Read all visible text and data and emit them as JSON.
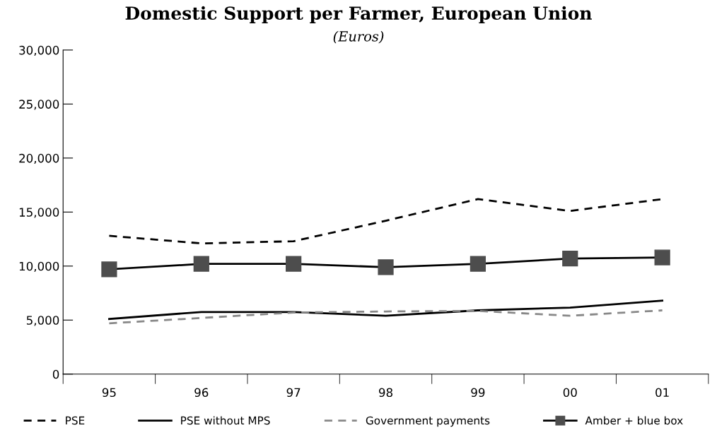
{
  "chart_data": {
    "type": "line",
    "title": "Domestic Support per Farmer, European Union",
    "subtitle": "(Euros)",
    "categories": [
      "95",
      "96",
      "97",
      "98",
      "99",
      "00",
      "01"
    ],
    "series": [
      {
        "name": "PSE",
        "color": "#000000",
        "line_style": "dashed",
        "marker": "none",
        "values": [
          12800,
          12100,
          12300,
          14200,
          16200,
          15100,
          16200
        ]
      },
      {
        "name": "PSE without MPS",
        "color": "#000000",
        "line_style": "solid",
        "marker": "none",
        "values": [
          5100,
          5750,
          5750,
          5400,
          5900,
          6150,
          6800
        ]
      },
      {
        "name": "Government payments",
        "color": "#888888",
        "line_style": "dashed",
        "marker": "none",
        "values": [
          4700,
          5200,
          5700,
          5800,
          5850,
          5400,
          5900
        ]
      },
      {
        "name": "Amber + blue box",
        "color": "#000000",
        "line_style": "solid",
        "marker": "square",
        "values": [
          9700,
          10200,
          10200,
          9900,
          10200,
          10700,
          10800
        ]
      }
    ],
    "ylim": [
      0,
      30000
    ],
    "yticks": [
      {
        "value": 0,
        "label": "0"
      },
      {
        "value": 5000,
        "label": "5,000"
      },
      {
        "value": 10000,
        "label": "10,000"
      },
      {
        "value": 15000,
        "label": "15,000"
      },
      {
        "value": 20000,
        "label": "20,000"
      },
      {
        "value": 25000,
        "label": "25,000"
      },
      {
        "value": 30000,
        "label": "30,000"
      }
    ],
    "grid": false,
    "legend": "bottom"
  }
}
